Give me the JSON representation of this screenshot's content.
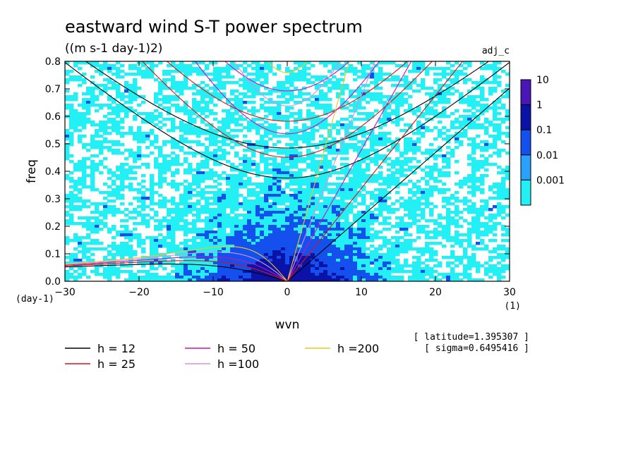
{
  "chart_data": {
    "type": "heatmap",
    "title": "eastward wind S-T power spectrum",
    "subtitle": "((m s-1 day-1)2)",
    "tag": "adj_c",
    "xlabel": "wvn",
    "ylabel": "freq",
    "x_unit": "(1)",
    "y_unit": "(day-1)",
    "xlim": [
      -30,
      30
    ],
    "ylim": [
      0,
      0.8
    ],
    "x_ticks": [
      "−30",
      "−20",
      "−10",
      "0",
      "10",
      "20",
      "30"
    ],
    "x_tick_values": [
      -30,
      -20,
      -10,
      0,
      10,
      20,
      30
    ],
    "y_ticks": [
      "0.0",
      "0.1",
      "0.2",
      "0.3",
      "0.4",
      "0.5",
      "0.6",
      "0.7",
      "0.8"
    ],
    "y_tick_values": [
      0,
      0.1,
      0.2,
      0.3,
      0.4,
      0.5,
      0.6,
      0.7,
      0.8
    ],
    "colorbar": {
      "labels": [
        "10",
        "1",
        "0.1",
        "0.01",
        "0.001"
      ],
      "colors": [
        "#4a16b8",
        "#0a12a8",
        "#1450ee",
        "#2aa0ff",
        "#22f0f4"
      ]
    },
    "dispersion_curves": [
      {
        "label": "h = 12",
        "h": 12,
        "color": "#000000"
      },
      {
        "label": "h = 25",
        "h": 25,
        "color": "#e01010"
      },
      {
        "label": "h = 50",
        "h": 50,
        "color": "#d010b8"
      },
      {
        "label": "h =100",
        "h": 100,
        "color": "#d890e0"
      },
      {
        "label": "h =200",
        "h": 200,
        "color": "#f0c818"
      }
    ],
    "info": {
      "latitude": "[ latitude=1.395307 ]",
      "sigma": "[ sigma=0.6495416 ]"
    }
  }
}
